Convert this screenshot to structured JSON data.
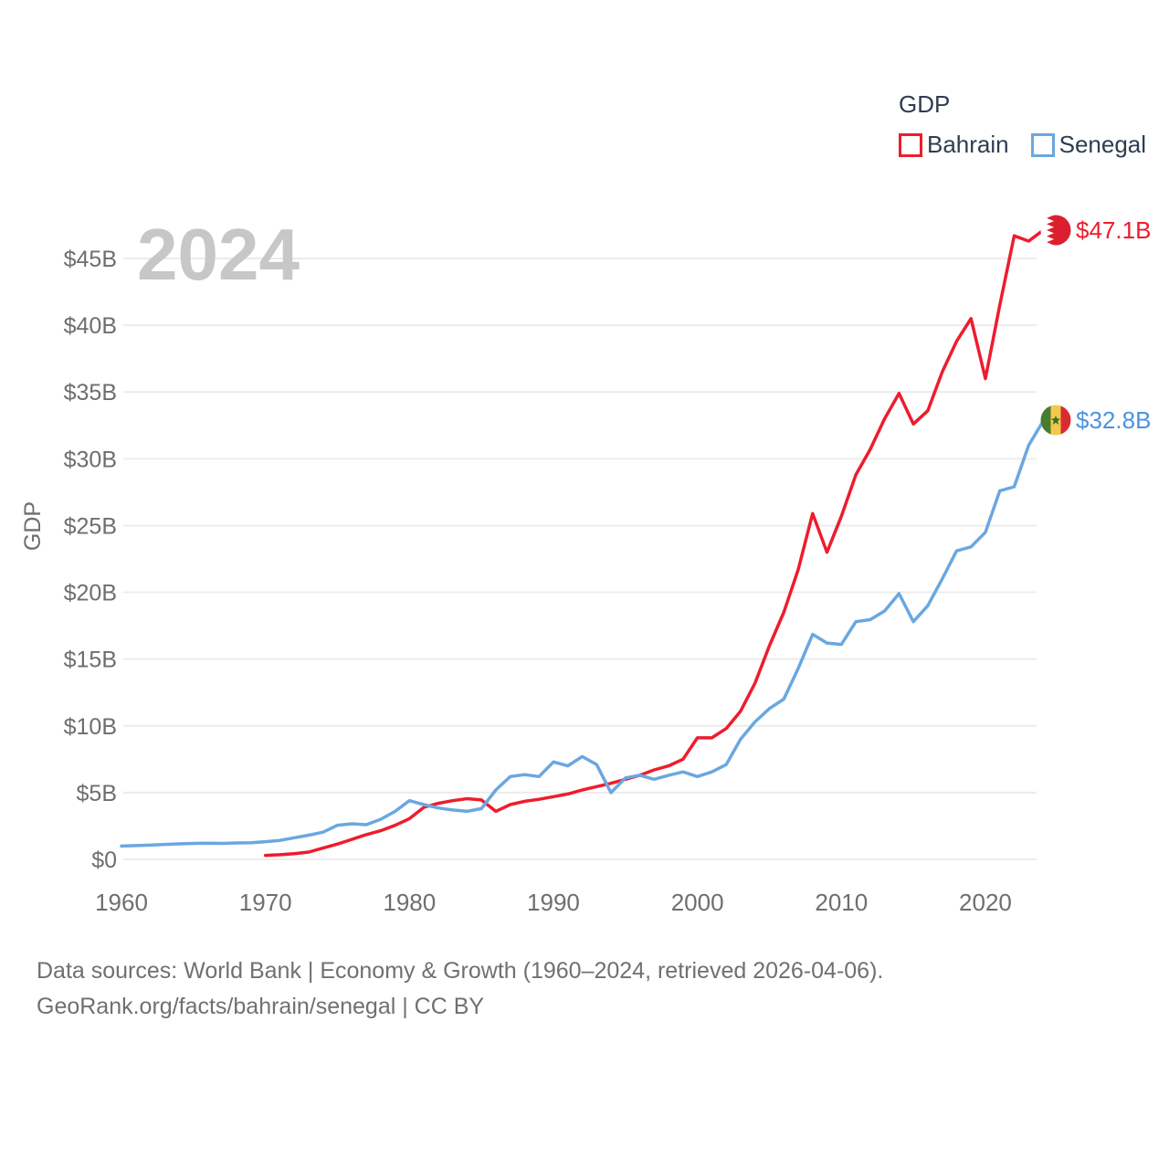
{
  "watermark": "2024",
  "legend": {
    "title": "GDP",
    "items": [
      {
        "label": "Bahrain",
        "color": "#ee1c2e"
      },
      {
        "label": "Senegal",
        "color": "#6aa7e0"
      }
    ]
  },
  "end_labels": [
    {
      "series": "Bahrain",
      "text": "$47.1B",
      "color": "#ee1c2e",
      "flag": "bahrain-flag"
    },
    {
      "series": "Senegal",
      "text": "$32.8B",
      "color": "#4a93e0",
      "flag": "senegal-flag"
    }
  ],
  "footer": {
    "line1": "Data sources: World Bank | Economy & Growth (1960–2024, retrieved 2026-04-06).",
    "line2": "GeoRank.org/facts/bahrain/senegal | CC BY"
  },
  "chart_data": {
    "type": "line",
    "title": "GDP",
    "xlabel": "",
    "ylabel": "GDP",
    "unit": "current US$, billions",
    "grid": true,
    "legend_position": "top-right",
    "xlim": [
      1958.5,
      2025.5
    ],
    "ylim": [
      0,
      47.5
    ],
    "x_ticks": [
      1960,
      1970,
      1980,
      1990,
      2000,
      2010,
      2020
    ],
    "y_ticks": [
      0,
      5,
      10,
      15,
      20,
      25,
      30,
      35,
      40,
      45
    ],
    "y_tick_labels": [
      "$0",
      "$5B",
      "$10B",
      "$15B",
      "$20B",
      "$25B",
      "$30B",
      "$35B",
      "$40B",
      "$45B"
    ],
    "series": [
      {
        "name": "Bahrain",
        "color": "#ee1c2e",
        "end_label": "$47.1B",
        "x": [
          1970,
          1971,
          1972,
          1973,
          1974,
          1975,
          1976,
          1977,
          1978,
          1979,
          1980,
          1981,
          1982,
          1983,
          1984,
          1985,
          1986,
          1987,
          1988,
          1989,
          1990,
          1991,
          1992,
          1993,
          1994,
          1995,
          1996,
          1997,
          1998,
          1999,
          2000,
          2001,
          2002,
          2003,
          2004,
          2005,
          2006,
          2007,
          2008,
          2009,
          2010,
          2011,
          2012,
          2013,
          2014,
          2015,
          2016,
          2017,
          2018,
          2019,
          2020,
          2021,
          2022,
          2023,
          2024
        ],
        "values": [
          0.3,
          0.35,
          0.43,
          0.55,
          0.85,
          1.15,
          1.5,
          1.85,
          2.15,
          2.55,
          3.05,
          3.9,
          4.2,
          4.4,
          4.55,
          4.45,
          3.6,
          4.1,
          4.35,
          4.5,
          4.7,
          4.9,
          5.2,
          5.45,
          5.7,
          6.0,
          6.3,
          6.7,
          7.0,
          7.5,
          9.1,
          9.1,
          9.8,
          11.1,
          13.2,
          16.0,
          18.5,
          21.7,
          25.9,
          23.0,
          25.7,
          28.8,
          30.7,
          33.0,
          34.9,
          32.6,
          33.6,
          36.5,
          38.8,
          40.5,
          36.0,
          41.5,
          46.7,
          46.3,
          47.1
        ]
      },
      {
        "name": "Senegal",
        "color": "#6aa7e0",
        "end_label": "$32.8B",
        "x": [
          1960,
          1961,
          1962,
          1963,
          1964,
          1965,
          1966,
          1967,
          1968,
          1969,
          1970,
          1971,
          1972,
          1973,
          1974,
          1975,
          1976,
          1977,
          1978,
          1979,
          1980,
          1981,
          1982,
          1983,
          1984,
          1985,
          1986,
          1987,
          1988,
          1989,
          1990,
          1991,
          1992,
          1993,
          1994,
          1995,
          1996,
          1997,
          1998,
          1999,
          2000,
          2001,
          2002,
          2003,
          2004,
          2005,
          2006,
          2007,
          2008,
          2009,
          2010,
          2011,
          2012,
          2013,
          2014,
          2015,
          2016,
          2017,
          2018,
          2019,
          2020,
          2021,
          2022,
          2023,
          2024
        ],
        "values": [
          1.0,
          1.03,
          1.07,
          1.12,
          1.16,
          1.2,
          1.22,
          1.2,
          1.23,
          1.25,
          1.33,
          1.42,
          1.62,
          1.81,
          2.04,
          2.56,
          2.67,
          2.6,
          3.0,
          3.6,
          4.4,
          4.1,
          3.85,
          3.7,
          3.6,
          3.8,
          5.2,
          6.2,
          6.35,
          6.2,
          7.3,
          7.0,
          7.7,
          7.1,
          5.0,
          6.1,
          6.3,
          6.0,
          6.3,
          6.55,
          6.2,
          6.55,
          7.1,
          9.0,
          10.3,
          11.3,
          12.0,
          14.3,
          16.85,
          16.2,
          16.1,
          17.8,
          17.95,
          18.6,
          19.9,
          17.8,
          19.0,
          21.0,
          23.1,
          23.4,
          24.5,
          27.6,
          27.9,
          31.0,
          32.8
        ]
      }
    ]
  }
}
